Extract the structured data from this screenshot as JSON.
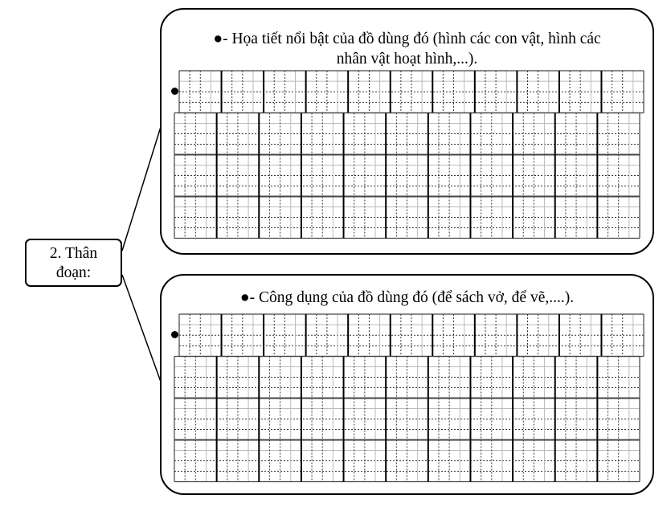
{
  "label": {
    "line1": "2. Thân",
    "line2": "đoạn:"
  },
  "sections": [
    {
      "line1": "●- Họa tiết nổi bật của đồ dùng đó (hình các con vật, hình các",
      "line2": "nhân vật hoạt hình,...)."
    },
    {
      "line1": "●- Công dụng của đồ dùng đó (để sách vở, để vẽ,....).",
      "line2": ""
    }
  ],
  "grid": {
    "columns": 11,
    "writing_rows": 4
  }
}
